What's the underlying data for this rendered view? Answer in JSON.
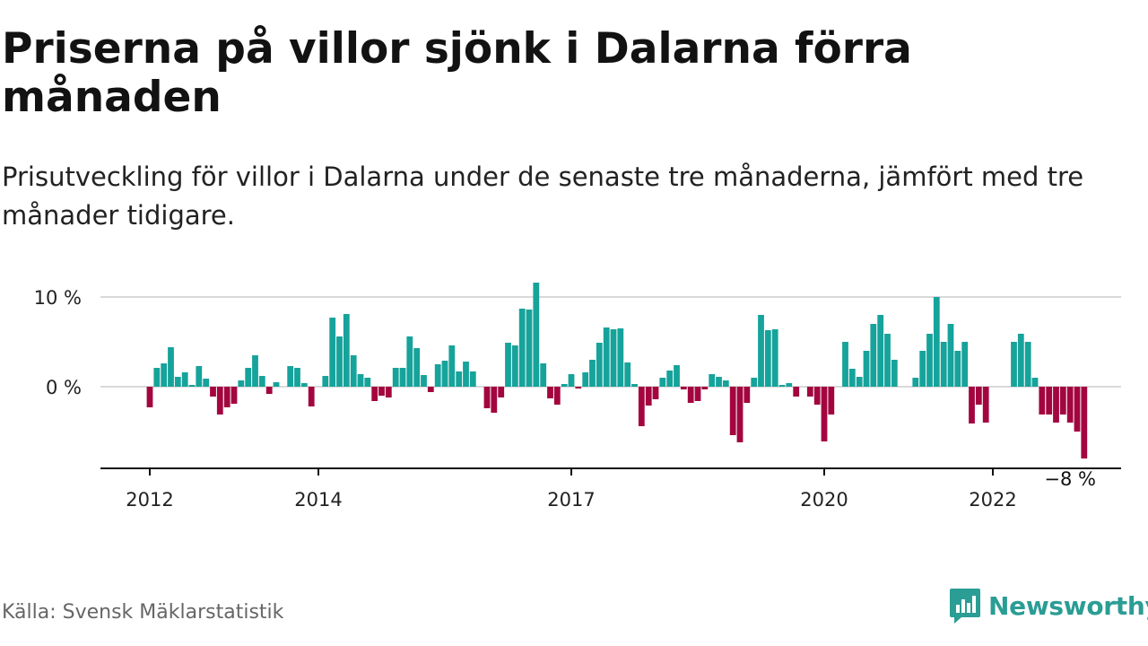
{
  "title": "Priserna på villor sjönk i Dalarna förra månaden",
  "subtitle": "Prisutveckling för villor i Dalarna under de senaste tre månaderna, jämfört med tre månader tidigare.",
  "source": "Källa: Svensk Mäklarstatistik",
  "brand": {
    "name": "Newsworthy",
    "icon": "newsworthy-logo-icon",
    "color": "#2a9d94"
  },
  "colors": {
    "positive": "#16a39b",
    "negative": "#a3063f",
    "grid": "#d9d9d9",
    "axis": "#111111"
  },
  "chart_data": {
    "type": "bar",
    "title": "",
    "xlabel": "",
    "ylabel": "",
    "unit": "%",
    "ylim": [
      -9,
      11.5
    ],
    "grid": "horizontal",
    "y_ticks": [
      {
        "value": 0,
        "label": "0 %"
      },
      {
        "value": 10,
        "label": "10 %"
      }
    ],
    "x_ticks": [
      {
        "date": "2012-01",
        "label": "2012"
      },
      {
        "date": "2014-01",
        "label": "2014"
      },
      {
        "date": "2017-01",
        "label": "2017"
      },
      {
        "date": "2020-01",
        "label": "2020"
      },
      {
        "date": "2022-01",
        "label": "2022"
      }
    ],
    "start": "2012-01",
    "end": "2022-12",
    "values": [
      -2.3,
      2.1,
      2.6,
      4.4,
      1.1,
      1.6,
      0.2,
      2.3,
      0.9,
      -1.1,
      -3.1,
      -2.3,
      -1.9,
      0.7,
      2.1,
      3.5,
      1.2,
      -0.8,
      0.5,
      0,
      2.3,
      2.1,
      0.4,
      -2.2,
      0,
      1.2,
      7.7,
      5.6,
      8.1,
      3.5,
      1.4,
      1.0,
      -1.6,
      -1.0,
      -1.2,
      2.1,
      2.1,
      5.6,
      4.3,
      1.3,
      -0.6,
      2.5,
      2.9,
      4.6,
      1.7,
      2.8,
      1.7,
      0,
      -2.4,
      -2.9,
      -1.2,
      4.9,
      4.6,
      8.7,
      8.6,
      11.6,
      2.6,
      -1.3,
      -2.0,
      0.3,
      1.4,
      -0.2,
      1.6,
      3.0,
      4.9,
      6.6,
      6.4,
      6.5,
      2.7,
      0.3,
      -4.4,
      -2.1,
      -1.4,
      1.0,
      1.8,
      2.4,
      -0.3,
      -1.8,
      -1.6,
      -0.3,
      1.4,
      1.1,
      0.7,
      -5.4,
      -6.2,
      -1.8,
      1.0,
      8.0,
      6.3,
      6.4,
      0.2,
      0.4,
      -1.1,
      0,
      -1.1,
      -2.0,
      -6.1,
      -3.1,
      0,
      5.0,
      2.0,
      1.1,
      4.0,
      7.0,
      8.0,
      5.9,
      3.0,
      0,
      0,
      1.0,
      4.0,
      5.9,
      10.0,
      5.0,
      7.0,
      4.0,
      5.0,
      -4.1,
      -2.0,
      -4.0,
      0,
      0,
      0,
      5.0,
      5.9,
      5.0,
      1.0,
      -3.1,
      -3.1,
      -4.0,
      -3.1,
      -4.0,
      -5.0,
      -8.0
    ],
    "annotations": [
      {
        "date": "2022-12",
        "value": -8.0,
        "label": "−8 %"
      }
    ]
  }
}
